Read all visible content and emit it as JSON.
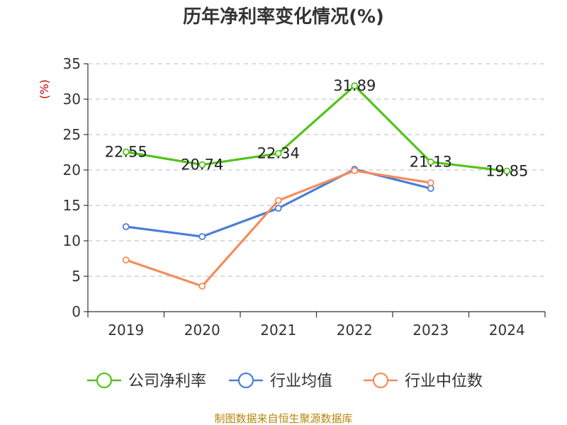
{
  "chart_data": {
    "type": "line",
    "title": "历年净利率变化情况(%)",
    "ylabel": "(%)",
    "categories": [
      "2019",
      "2020",
      "2021",
      "2022",
      "2023",
      "2024"
    ],
    "ylim": [
      0,
      35
    ],
    "yticks": [
      "0",
      "5",
      "10",
      "15",
      "20",
      "25",
      "30",
      "35"
    ],
    "grid": true,
    "legend_position": "bottom",
    "series": [
      {
        "name": "公司净利率",
        "color": "#52c41a",
        "values": [
          22.55,
          20.74,
          22.34,
          31.89,
          21.13,
          19.85
        ],
        "labels": [
          "22.55",
          "20.74",
          "22.34",
          "31.89",
          "21.13",
          "19.85"
        ]
      },
      {
        "name": "行业均值",
        "color": "#4a7fd6",
        "values": [
          12.0,
          10.6,
          14.6,
          20.1,
          17.4,
          null
        ]
      },
      {
        "name": "行业中位数",
        "color": "#f58c5c",
        "values": [
          7.3,
          3.6,
          15.7,
          19.9,
          18.2,
          null
        ]
      }
    ]
  },
  "source": "制图数据来自恒生聚源数据库"
}
